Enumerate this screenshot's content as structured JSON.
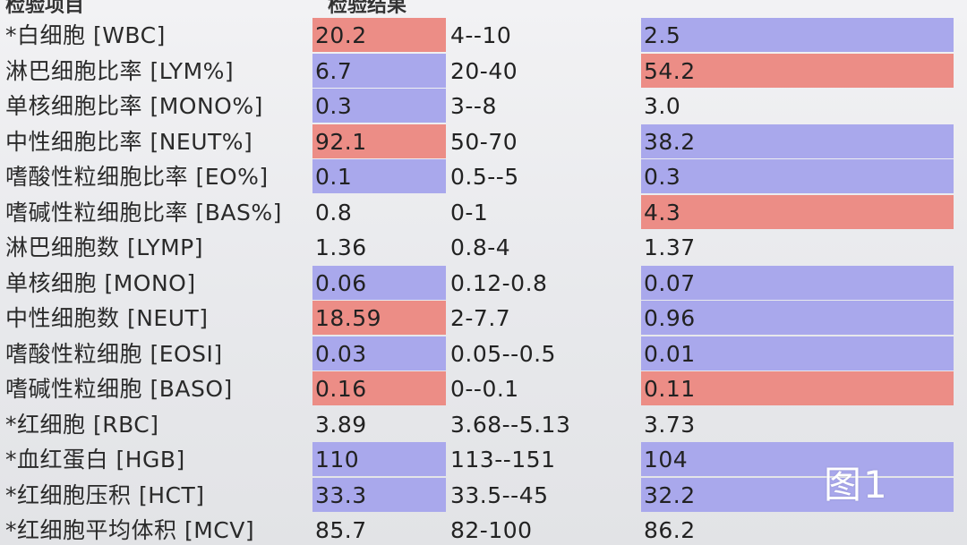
{
  "header": {
    "item": "检验项目",
    "extra": "",
    "result": "检验结果",
    "ref": ""
  },
  "colors": {
    "high": "#ec8d86",
    "low": "#a9a8ec",
    "background": "#ecedef"
  },
  "rows": [
    {
      "name": "*白细胞 [WBC]",
      "value": "20.2",
      "value_flag": "high",
      "ref": "4--10",
      "prev": "2.5",
      "prev_flag": "low"
    },
    {
      "name": "淋巴细胞比率 [LYM%]",
      "value": "6.7",
      "value_flag": "low",
      "ref": "20-40",
      "prev": "54.2",
      "prev_flag": "high"
    },
    {
      "name": "单核细胞比率 [MONO%]",
      "value": "0.3",
      "value_flag": "low",
      "ref": "3--8",
      "prev": "3.0",
      "prev_flag": ""
    },
    {
      "name": "中性细胞比率 [NEUT%]",
      "value": "92.1",
      "value_flag": "high",
      "ref": "50-70",
      "prev": "38.2",
      "prev_flag": "low"
    },
    {
      "name": "嗜酸性粒细胞比率 [EO%]",
      "value": "0.1",
      "value_flag": "low",
      "ref": "0.5--5",
      "prev": "0.3",
      "prev_flag": "low"
    },
    {
      "name": "嗜碱性粒细胞比率 [BAS%]",
      "value": "0.8",
      "value_flag": "",
      "ref": "0-1",
      "prev": "4.3",
      "prev_flag": "high"
    },
    {
      "name": "淋巴细胞数 [LYMP]",
      "value": "1.36",
      "value_flag": "",
      "ref": "0.8-4",
      "prev": "1.37",
      "prev_flag": ""
    },
    {
      "name": "单核细胞 [MONO]",
      "value": "0.06",
      "value_flag": "low",
      "ref": "0.12-0.8",
      "prev": "0.07",
      "prev_flag": "low"
    },
    {
      "name": "中性细胞数 [NEUT]",
      "value": "18.59",
      "value_flag": "high",
      "ref": "2-7.7",
      "prev": "0.96",
      "prev_flag": "low"
    },
    {
      "name": "嗜酸性粒细胞 [EOSI]",
      "value": "0.03",
      "value_flag": "low",
      "ref": "0.05--0.5",
      "prev": "0.01",
      "prev_flag": "low"
    },
    {
      "name": "嗜碱性粒细胞 [BASO]",
      "value": "0.16",
      "value_flag": "high",
      "ref": "0--0.1",
      "prev": "0.11",
      "prev_flag": "high"
    },
    {
      "name": "*红细胞 [RBC]",
      "value": "3.89",
      "value_flag": "",
      "ref": "3.68--5.13",
      "prev": "3.73",
      "prev_flag": ""
    },
    {
      "name": "*血红蛋白 [HGB]",
      "value": "110",
      "value_flag": "low",
      "ref": "113--151",
      "prev": "104",
      "prev_flag": "low"
    },
    {
      "name": "*红细胞压积 [HCT]",
      "value": "33.3",
      "value_flag": "low",
      "ref": "33.5--45",
      "prev": "32.2",
      "prev_flag": "low"
    },
    {
      "name": "*红细胞平均体积 [MCV]",
      "value": "85.7",
      "value_flag": "",
      "ref": "82-100",
      "prev": "86.2",
      "prev_flag": ""
    }
  ],
  "figure_label": "图1"
}
